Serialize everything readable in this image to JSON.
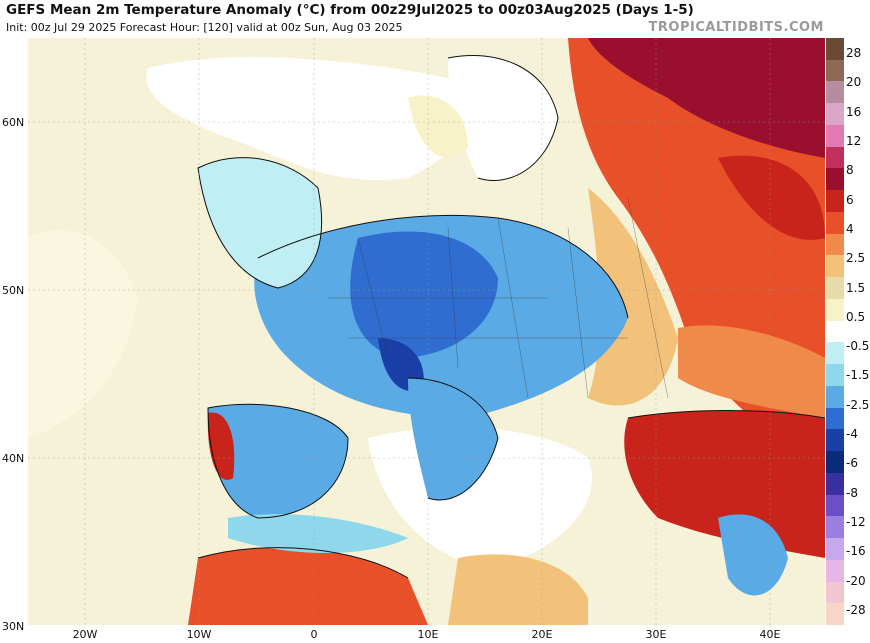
{
  "header": {
    "title": "GEFS Mean 2m Temperature Anomaly (°C) from 00z29Jul2025 to 00z03Aug2025 (Days 1-5)",
    "subtitle": "Init: 00z Jul 29 2025   Forecast Hour: [120]   valid at 00z Sun, Aug 03 2025",
    "brand": "TROPICALTIDBITS.COM"
  },
  "axes": {
    "lat_labels": [
      "60N",
      "50N",
      "40N",
      "30N"
    ],
    "lon_labels": [
      "20W",
      "10W",
      "0",
      "10E",
      "20E",
      "30E",
      "40E"
    ]
  },
  "colorbar": {
    "labels": [
      "28",
      "20",
      "16",
      "12",
      "8",
      "6",
      "4",
      "2.5",
      "1.5",
      "0.5",
      "-0.5",
      "-1.5",
      "-2.5",
      "-4",
      "-6",
      "-8",
      "-12",
      "-16",
      "-20",
      "-28"
    ],
    "colors": [
      "#6b4a35",
      "#8c6a55",
      "#b38ea0",
      "#d8a7c8",
      "#e07ab0",
      "#c0305a",
      "#9b0f2e",
      "#c8241c",
      "#e8502a",
      "#f08a4a",
      "#f2c27a",
      "#e6dcaa",
      "#f8f2c8",
      "#ffffff",
      "#bfeff4",
      "#8fd8ec",
      "#5aaae6",
      "#2f6ed0",
      "#1a3fa6",
      "#0b2a78",
      "#3a2fa0",
      "#6a4fc8",
      "#9a7fe0",
      "#c6a8ee",
      "#e8b6e6",
      "#f2c6d0",
      "#f7d6c8"
    ]
  },
  "map": {
    "region": "Europe",
    "features": [
      "coastlines",
      "country-borders",
      "regional-borders"
    ],
    "anomaly_colors": {
      "strong_warm": "#9b0f2e",
      "warm": "#e8502a",
      "mild_warm": "#f2c27a",
      "neutral": "#f8f2c8",
      "cool": "#8fd8ec",
      "cold": "#2f6ed0"
    }
  }
}
